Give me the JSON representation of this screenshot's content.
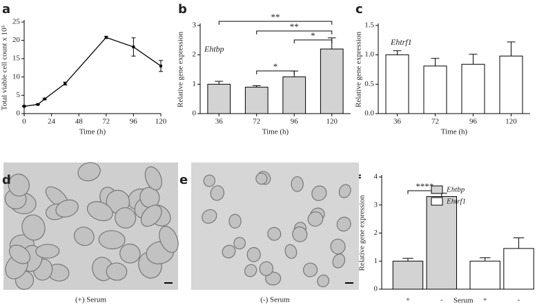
{
  "chart_data": [
    {
      "panel": "a",
      "type": "line",
      "x": [
        0,
        12,
        18,
        36,
        72,
        96,
        120
      ],
      "values": [
        2,
        2.5,
        4,
        8.2,
        20.8,
        18.2,
        13
      ],
      "errors": [
        0.1,
        0.1,
        0.2,
        0.4,
        0.3,
        2.5,
        1.5
      ],
      "color": "#000000",
      "xlim": [
        0,
        120
      ],
      "xticks": [
        0,
        24,
        48,
        72,
        96,
        120
      ],
      "ylim": [
        0,
        25
      ],
      "yticks": [
        0,
        5,
        10,
        15,
        20,
        25
      ],
      "xlabel": "Time (h)",
      "ylabel": "Total viable cell count x 10⁵"
    },
    {
      "panel": "b",
      "type": "bar",
      "categories": [
        "36",
        "72",
        "96",
        "120"
      ],
      "values": [
        1.0,
        0.9,
        1.25,
        2.2
      ],
      "errors": [
        0.1,
        0.05,
        0.2,
        0.38
      ],
      "color": "#d3d3d3",
      "ylim": [
        0,
        3
      ],
      "yticks": [
        0,
        1,
        2,
        3
      ],
      "xlabel": "Time (h)",
      "ylabel": "Relative gene expression",
      "annotation": "Ehtbp",
      "significance": [
        {
          "from": 0,
          "to": 3,
          "label": "**"
        },
        {
          "from": 1,
          "to": 3,
          "label": "**"
        },
        {
          "from": 2,
          "to": 3,
          "label": "*"
        },
        {
          "from": 1,
          "to": 2,
          "label": "*"
        }
      ]
    },
    {
      "panel": "c",
      "type": "bar",
      "categories": [
        "36",
        "72",
        "96",
        "120"
      ],
      "values": [
        1.0,
        0.81,
        0.84,
        0.98
      ],
      "errors": [
        0.07,
        0.13,
        0.17,
        0.24
      ],
      "color": "#ffffff",
      "ylim": [
        0,
        1.5
      ],
      "yticks": [
        {
          "value": 0,
          "label": "0.0"
        },
        0.5,
        {
          "value": 1,
          "label": "1.0"
        },
        1.5
      ],
      "xlabel": "Time (h)",
      "ylabel": "Relative gene expression",
      "annotation": "Ehtrf1"
    },
    {
      "panel": "f",
      "type": "bar",
      "categories": [
        "+",
        "-",
        "+",
        "-"
      ],
      "series": [
        {
          "name": "Ehtbp",
          "color": "#d3d3d3",
          "values": [
            1.0,
            3.3,
            null,
            null
          ],
          "errors": [
            0.1,
            0.12,
            null,
            null
          ]
        },
        {
          "name": "Ehtrf1",
          "color": "#ffffff",
          "values": [
            null,
            null,
            1.0,
            1.45
          ],
          "errors": [
            null,
            null,
            0.12,
            0.38
          ]
        }
      ],
      "ylim": [
        0,
        4
      ],
      "yticks": [
        0,
        1,
        2,
        3,
        4
      ],
      "xlabel": "Serum",
      "ylabel": "Relative gene expression",
      "significance": [
        {
          "from": 0,
          "to": 1,
          "label": "****"
        }
      ]
    }
  ],
  "images": [
    {
      "panel": "d",
      "caption": "(+) Serum"
    },
    {
      "panel": "e",
      "caption": "(-) Serum"
    }
  ]
}
